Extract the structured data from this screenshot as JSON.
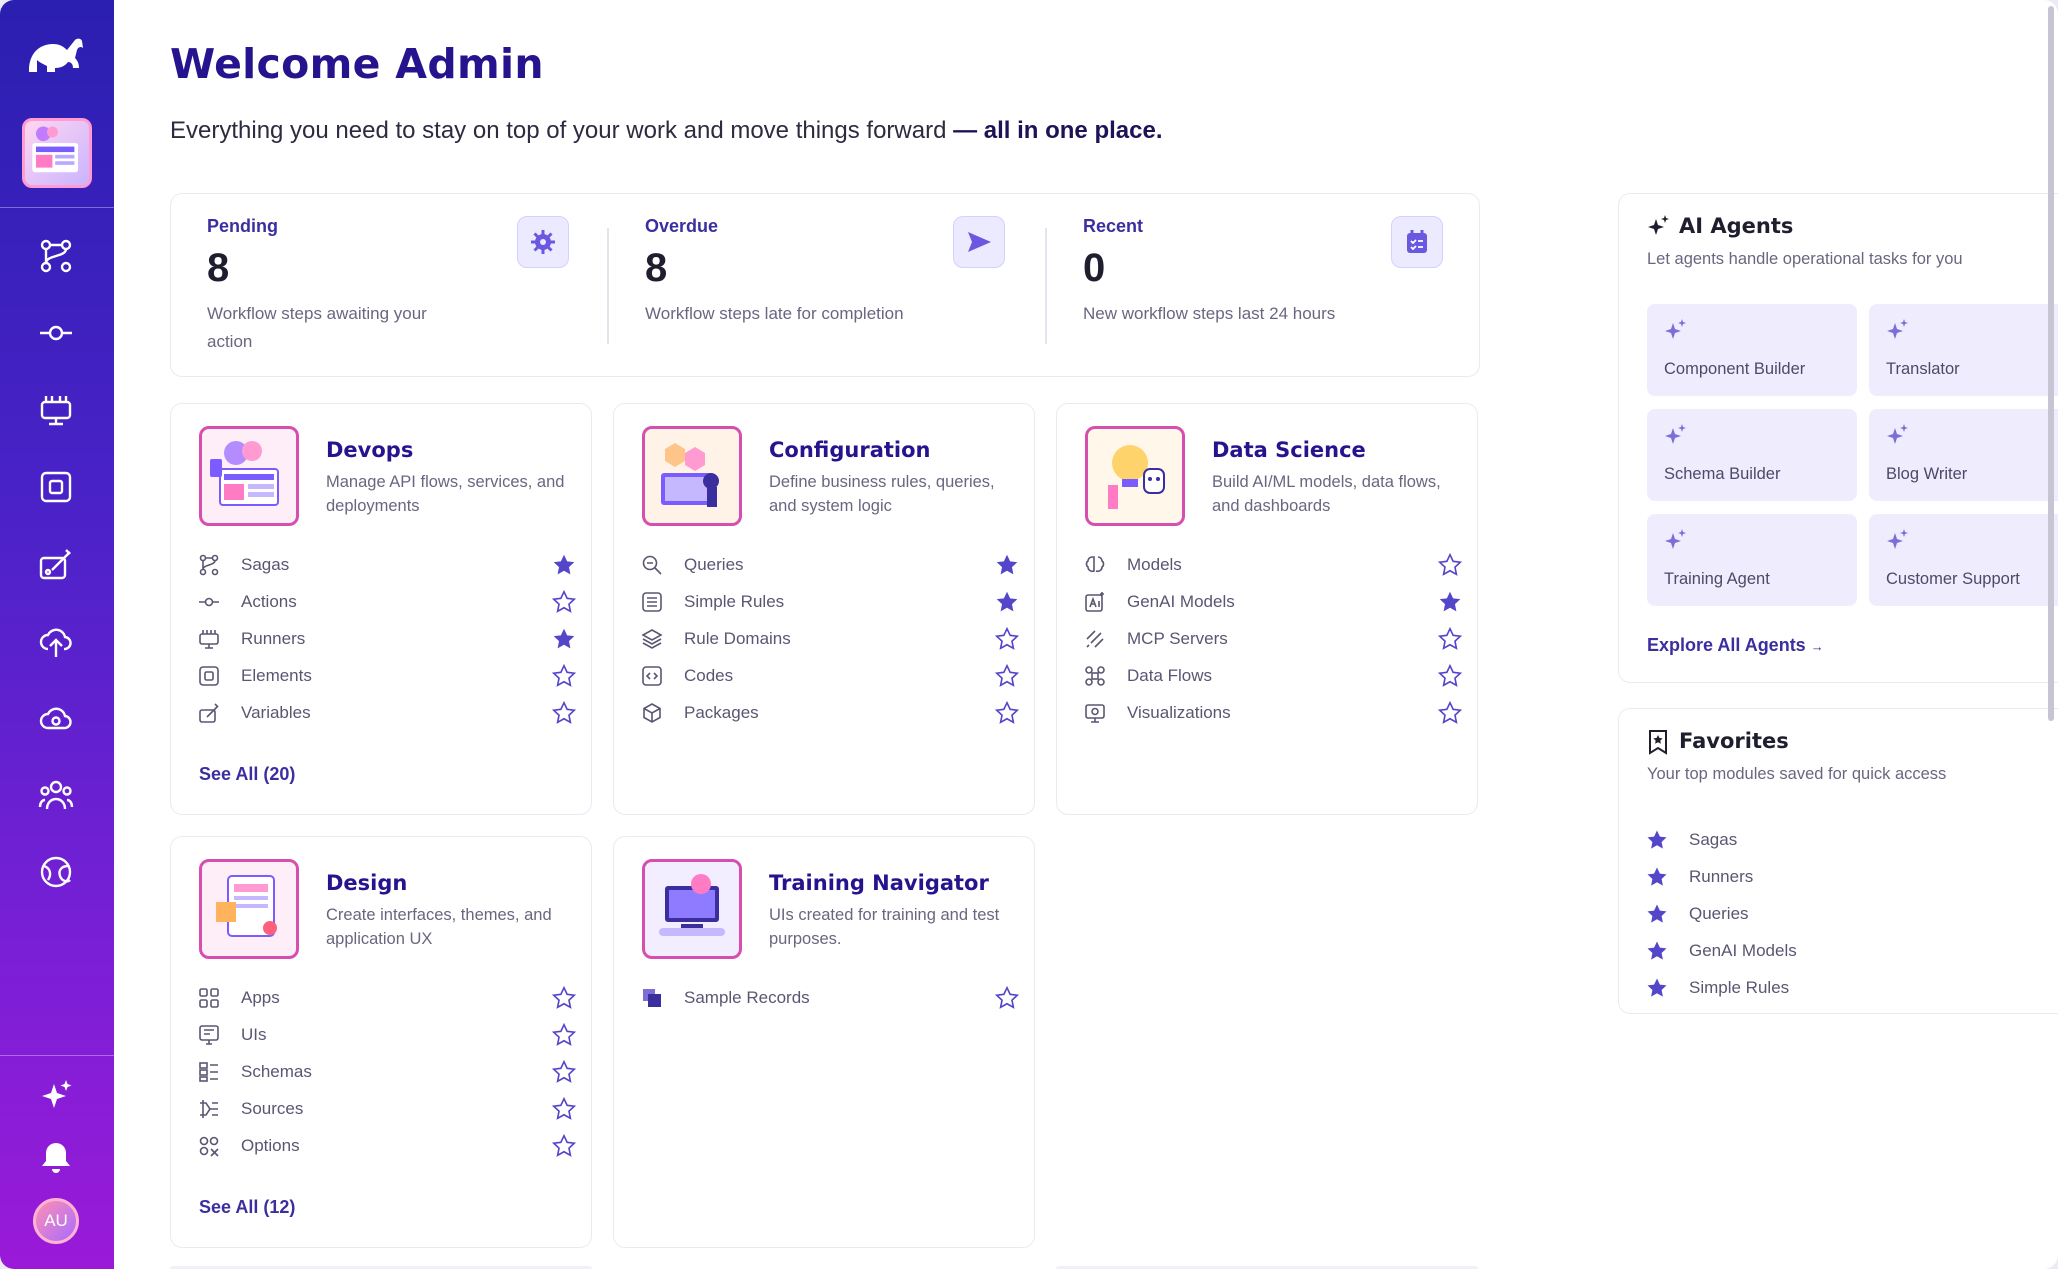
{
  "header": {
    "title": "Welcome Admin",
    "subtitle_plain": "Everything you need to stay on top of your work and move things forward ",
    "subtitle_bold": "— all in one place."
  },
  "user": {
    "initials": "AU"
  },
  "stats": [
    {
      "label": "Pending",
      "value": "8",
      "desc": "Workflow steps awaiting your action",
      "icon": "gear-sync-icon"
    },
    {
      "label": "Overdue",
      "value": "8",
      "desc": "Workflow steps late for completion",
      "icon": "send-icon"
    },
    {
      "label": "Recent",
      "value": "0",
      "desc": "New workflow steps last 24 hours",
      "icon": "checklist-icon"
    }
  ],
  "modules": [
    {
      "title": "Devops",
      "desc": "Manage API flows, services, and deployments",
      "items": [
        {
          "label": "Sagas",
          "icon": "saga-icon",
          "starred": true
        },
        {
          "label": "Actions",
          "icon": "action-icon",
          "starred": false
        },
        {
          "label": "Runners",
          "icon": "runner-icon",
          "starred": true
        },
        {
          "label": "Elements",
          "icon": "element-icon",
          "starred": false
        },
        {
          "label": "Variables",
          "icon": "variable-icon",
          "starred": false
        }
      ],
      "see_all": "See All (20)"
    },
    {
      "title": "Configuration",
      "desc": "Define business rules, queries, and system logic",
      "items": [
        {
          "label": "Queries",
          "icon": "query-icon",
          "starred": true
        },
        {
          "label": "Simple Rules",
          "icon": "rules-icon",
          "starred": true
        },
        {
          "label": "Rule Domains",
          "icon": "layers-icon",
          "starred": false
        },
        {
          "label": "Codes",
          "icon": "code-icon",
          "starred": false
        },
        {
          "label": "Packages",
          "icon": "package-icon",
          "starred": false
        }
      ],
      "see_all": ""
    },
    {
      "title": "Data Science",
      "desc": "Build AI/ML models, data flows, and dashboards",
      "items": [
        {
          "label": "Models",
          "icon": "model-icon",
          "starred": false
        },
        {
          "label": "GenAI Models",
          "icon": "genai-icon",
          "starred": true
        },
        {
          "label": "MCP Servers",
          "icon": "mcp-icon",
          "starred": false
        },
        {
          "label": "Data Flows",
          "icon": "dataflow-icon",
          "starred": false
        },
        {
          "label": "Visualizations",
          "icon": "visualization-icon",
          "starred": false
        }
      ],
      "see_all": ""
    },
    {
      "title": "Design",
      "desc": "Create interfaces, themes, and application UX",
      "items": [
        {
          "label": "Apps",
          "icon": "apps-icon",
          "starred": false
        },
        {
          "label": "UIs",
          "icon": "ui-icon",
          "starred": false
        },
        {
          "label": "Schemas",
          "icon": "schema-icon",
          "starred": false
        },
        {
          "label": "Sources",
          "icon": "source-icon",
          "starred": false
        },
        {
          "label": "Options",
          "icon": "options-icon",
          "starred": false
        }
      ],
      "see_all": "See All (12)"
    },
    {
      "title": "Training Navigator",
      "desc": "UIs created for training and test purposes.",
      "items": [
        {
          "label": "Sample Records",
          "icon": "records-icon",
          "starred": false
        }
      ],
      "see_all": ""
    }
  ],
  "agents": {
    "title": "AI Agents",
    "subtitle": "Let agents handle operational tasks for you",
    "items": [
      "Component Builder",
      "Translator",
      "Schema Builder",
      "Blog Writer",
      "Training Agent",
      "Customer Support"
    ],
    "explore": "Explore All Agents"
  },
  "favorites": {
    "title": "Favorites",
    "subtitle": "Your top modules saved for quick access",
    "items": [
      "Sagas",
      "Runners",
      "Queries",
      "GenAI Models",
      "Simple Rules"
    ]
  },
  "colors": {
    "accent": "#3b2fa0",
    "title": "#25148e",
    "star": "#5446c9",
    "tile": "#efedfd"
  }
}
